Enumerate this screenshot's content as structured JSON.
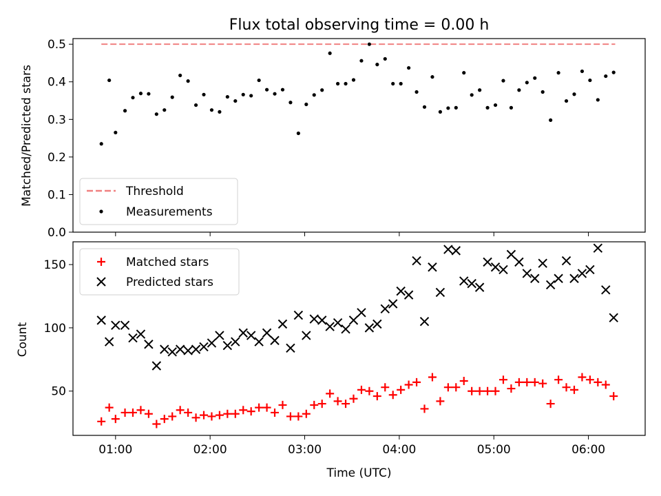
{
  "figure": {
    "title": "Flux total observing time = 0.00 h"
  },
  "chart_data": [
    {
      "type": "scatter",
      "ylabel": "Matched/Predicted stars",
      "xlabel": "",
      "ylim": [
        0,
        0.515
      ],
      "xlim": [
        "00:33",
        "06:36"
      ],
      "yticks": [
        "0.0",
        "0.1",
        "0.2",
        "0.3",
        "0.4",
        "0.5"
      ],
      "legend_position": "lower-left",
      "threshold": {
        "name": "Threshold",
        "value": 0.5,
        "x_start": "00:51",
        "x_end": "06:17",
        "color": "#f08080",
        "style": "dashed"
      },
      "series": [
        {
          "name": "Measurements",
          "color": "#000000",
          "marker": "dot",
          "x": [
            "00:51",
            "00:56",
            "01:00",
            "01:06",
            "01:11",
            "01:16",
            "01:21",
            "01:26",
            "01:31",
            "01:36",
            "01:41",
            "01:46",
            "01:51",
            "01:56",
            "02:01",
            "02:06",
            "02:11",
            "02:16",
            "02:21",
            "02:26",
            "02:31",
            "02:36",
            "02:41",
            "02:46",
            "02:51",
            "02:56",
            "03:01",
            "03:06",
            "03:11",
            "03:16",
            "03:21",
            "03:26",
            "03:31",
            "03:36",
            "03:41",
            "03:46",
            "03:51",
            "03:56",
            "04:01",
            "04:06",
            "04:11",
            "04:16",
            "04:21",
            "04:26",
            "04:31",
            "04:36",
            "04:41",
            "04:46",
            "04:51",
            "04:56",
            "05:01",
            "05:06",
            "05:11",
            "05:16",
            "05:21",
            "05:26",
            "05:31",
            "05:36",
            "05:41",
            "05:46",
            "05:51",
            "05:56",
            "06:01",
            "06:06",
            "06:11",
            "06:16"
          ],
          "values": [
            0.235,
            0.404,
            0.265,
            0.323,
            0.358,
            0.369,
            0.368,
            0.314,
            0.325,
            0.359,
            0.417,
            0.402,
            0.338,
            0.366,
            0.325,
            0.32,
            0.36,
            0.349,
            0.366,
            0.363,
            0.404,
            0.379,
            0.368,
            0.379,
            0.345,
            0.263,
            0.34,
            0.365,
            0.378,
            0.476,
            0.395,
            0.395,
            0.405,
            0.456,
            0.5,
            0.446,
            0.461,
            0.395,
            0.395,
            0.437,
            0.373,
            0.333,
            0.413,
            0.32,
            0.33,
            0.331,
            0.424,
            0.365,
            0.378,
            0.331,
            0.338,
            0.403,
            0.331,
            0.378,
            0.398,
            0.41,
            0.373,
            0.298,
            0.424,
            0.349,
            0.367,
            0.428,
            0.404,
            0.352,
            0.415,
            0.425
          ]
        }
      ]
    },
    {
      "type": "scatter",
      "ylabel": "Count",
      "xlabel": "Time (UTC)",
      "ylim": [
        15,
        168
      ],
      "xlim": [
        "00:33",
        "06:36"
      ],
      "yticks": [
        "50",
        "100",
        "150"
      ],
      "xticks": [
        "01:00",
        "02:00",
        "03:00",
        "04:00",
        "05:00",
        "06:00"
      ],
      "legend_position": "upper-left",
      "series": [
        {
          "name": "Matched stars",
          "color": "#ff0000",
          "marker": "plus",
          "x": [
            "00:51",
            "00:56",
            "01:00",
            "01:06",
            "01:11",
            "01:16",
            "01:21",
            "01:26",
            "01:31",
            "01:36",
            "01:41",
            "01:46",
            "01:51",
            "01:56",
            "02:01",
            "02:06",
            "02:11",
            "02:16",
            "02:21",
            "02:26",
            "02:31",
            "02:36",
            "02:41",
            "02:46",
            "02:51",
            "02:56",
            "03:01",
            "03:06",
            "03:11",
            "03:16",
            "03:21",
            "03:26",
            "03:31",
            "03:36",
            "03:41",
            "03:46",
            "03:51",
            "03:56",
            "04:01",
            "04:06",
            "04:11",
            "04:16",
            "04:21",
            "04:26",
            "04:31",
            "04:36",
            "04:41",
            "04:46",
            "04:51",
            "04:56",
            "05:01",
            "05:06",
            "05:11",
            "05:16",
            "05:21",
            "05:26",
            "05:31",
            "05:36",
            "05:41",
            "05:46",
            "05:51",
            "05:56",
            "06:01",
            "06:06",
            "06:11",
            "06:16"
          ],
          "values": [
            26,
            37,
            28,
            33,
            33,
            35,
            32,
            24,
            28,
            30,
            35,
            33,
            29,
            31,
            30,
            31,
            32,
            32,
            35,
            34,
            37,
            37,
            33,
            39,
            30,
            30,
            32,
            39,
            40,
            48,
            42,
            40,
            44,
            51,
            50,
            46,
            53,
            47,
            51,
            55,
            57,
            36,
            61,
            42,
            53,
            53,
            58,
            50,
            50,
            50,
            50,
            59,
            52,
            57,
            57,
            57,
            56,
            40,
            59,
            53,
            51,
            61,
            59,
            57,
            55,
            46
          ]
        },
        {
          "name": "Predicted stars",
          "color": "#000000",
          "marker": "x",
          "x": [
            "00:51",
            "00:56",
            "01:00",
            "01:06",
            "01:11",
            "01:16",
            "01:21",
            "01:26",
            "01:31",
            "01:36",
            "01:41",
            "01:46",
            "01:51",
            "01:56",
            "02:01",
            "02:06",
            "02:11",
            "02:16",
            "02:21",
            "02:26",
            "02:31",
            "02:36",
            "02:41",
            "02:46",
            "02:51",
            "02:56",
            "03:01",
            "03:06",
            "03:11",
            "03:16",
            "03:21",
            "03:26",
            "03:31",
            "03:36",
            "03:41",
            "03:46",
            "03:51",
            "03:56",
            "04:01",
            "04:06",
            "04:11",
            "04:16",
            "04:21",
            "04:26",
            "04:31",
            "04:36",
            "04:41",
            "04:46",
            "04:51",
            "04:56",
            "05:01",
            "05:06",
            "05:11",
            "05:16",
            "05:21",
            "05:26",
            "05:31",
            "05:36",
            "05:41",
            "05:46",
            "05:51",
            "05:56",
            "06:01",
            "06:06",
            "06:11",
            "06:16"
          ],
          "values": [
            106,
            89,
            102,
            102,
            92,
            95,
            87,
            70,
            83,
            81,
            83,
            82,
            83,
            85,
            88,
            94,
            86,
            89,
            96,
            94,
            89,
            96,
            90,
            103,
            84,
            110,
            94,
            107,
            106,
            101,
            104,
            99,
            106,
            112,
            100,
            103,
            115,
            119,
            129,
            126,
            153,
            105,
            148,
            128,
            162,
            161,
            137,
            135,
            132,
            152,
            148,
            146,
            158,
            152,
            143,
            139,
            151,
            134,
            139,
            153,
            139,
            143,
            146,
            163,
            130,
            108
          ]
        }
      ]
    }
  ]
}
